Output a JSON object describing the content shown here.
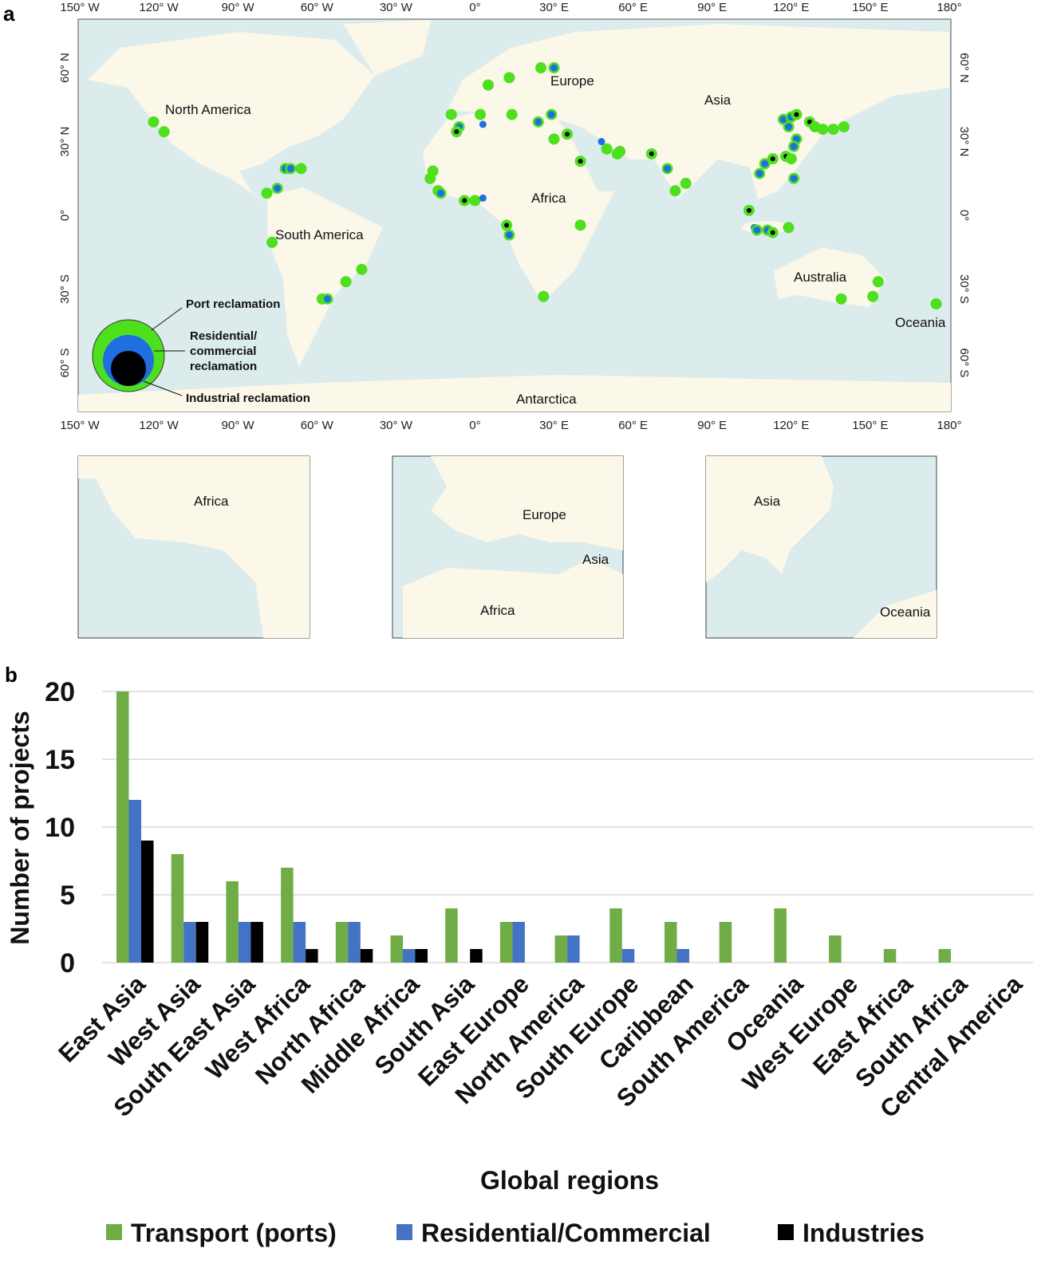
{
  "panel_a_label": "a",
  "panel_b_label": "b",
  "map": {
    "lon_ticks": [
      "150° W",
      "120° W",
      "90° W",
      "60° W",
      "30° W",
      "0°",
      "30° E",
      "60° E",
      "90° E",
      "120° E",
      "150° E",
      "180°"
    ],
    "lat_ticks": [
      "60° N",
      "30° N",
      "0°",
      "30° S",
      "60° S"
    ],
    "labels": [
      "North America",
      "South America",
      "Europe",
      "Asia",
      "Africa",
      "Australia",
      "Oceania",
      "Antarctica"
    ],
    "legend": {
      "port": "Port reclamation",
      "residential_1": "Residential/",
      "residential_2": "commercial",
      "residential_3": "reclamation",
      "industrial": "Industrial reclamation"
    },
    "colors": {
      "ocean": "#dcebec",
      "land": "#fbf7e9",
      "port": "#4ee01e",
      "residential": "#1f6fe0",
      "industrial": "#000000"
    },
    "points": [
      {
        "lon": -122,
        "lat": 38,
        "t": "g"
      },
      {
        "lon": -118,
        "lat": 34,
        "t": "g"
      },
      {
        "lon": -72,
        "lat": 19,
        "t": "gb"
      },
      {
        "lon": -70,
        "lat": 19,
        "t": "gb"
      },
      {
        "lon": -66,
        "lat": 19,
        "t": "g"
      },
      {
        "lon": -79,
        "lat": 9,
        "t": "g"
      },
      {
        "lon": -75,
        "lat": 11,
        "t": "gb"
      },
      {
        "lon": -77,
        "lat": -11,
        "t": "g"
      },
      {
        "lon": -58,
        "lat": -34,
        "t": "g"
      },
      {
        "lon": -56,
        "lat": -34,
        "t": "gb"
      },
      {
        "lon": -49,
        "lat": -27,
        "t": "g"
      },
      {
        "lon": -43,
        "lat": -22,
        "t": "g"
      },
      {
        "lon": -16,
        "lat": 18,
        "t": "g"
      },
      {
        "lon": -17,
        "lat": 15,
        "t": "g"
      },
      {
        "lon": -14,
        "lat": 10,
        "t": "g"
      },
      {
        "lon": -13,
        "lat": 9,
        "t": "gb"
      },
      {
        "lon": -4,
        "lat": 6,
        "t": "gk"
      },
      {
        "lon": 0,
        "lat": 6,
        "t": "g"
      },
      {
        "lon": 3,
        "lat": 7,
        "t": "b"
      },
      {
        "lon": 12,
        "lat": -4,
        "t": "gk"
      },
      {
        "lon": 13,
        "lat": -8,
        "t": "gb"
      },
      {
        "lon": 26,
        "lat": -33,
        "t": "g"
      },
      {
        "lon": 40,
        "lat": -4,
        "t": "g"
      },
      {
        "lon": 5,
        "lat": 53,
        "t": "g"
      },
      {
        "lon": 13,
        "lat": 56,
        "t": "g"
      },
      {
        "lon": 25,
        "lat": 60,
        "t": "g"
      },
      {
        "lon": 30,
        "lat": 60,
        "t": "gb"
      },
      {
        "lon": -9,
        "lat": 41,
        "t": "g"
      },
      {
        "lon": 2,
        "lat": 41,
        "t": "g"
      },
      {
        "lon": 14,
        "lat": 41,
        "t": "g"
      },
      {
        "lon": -6,
        "lat": 36,
        "t": "gb"
      },
      {
        "lon": -7,
        "lat": 34,
        "t": "gk"
      },
      {
        "lon": 3,
        "lat": 37,
        "t": "b"
      },
      {
        "lon": 24,
        "lat": 38,
        "t": "gb"
      },
      {
        "lon": 29,
        "lat": 41,
        "t": "gb"
      },
      {
        "lon": 35,
        "lat": 33,
        "t": "gk"
      },
      {
        "lon": 30,
        "lat": 31,
        "t": "g"
      },
      {
        "lon": 40,
        "lat": 22,
        "t": "gk"
      },
      {
        "lon": 48,
        "lat": 30,
        "t": "b"
      },
      {
        "lon": 50,
        "lat": 27,
        "t": "g"
      },
      {
        "lon": 54,
        "lat": 25,
        "t": "g"
      },
      {
        "lon": 55,
        "lat": 26,
        "t": "g"
      },
      {
        "lon": 67,
        "lat": 25,
        "t": "gk"
      },
      {
        "lon": 73,
        "lat": 19,
        "t": "gb"
      },
      {
        "lon": 76,
        "lat": 10,
        "t": "g"
      },
      {
        "lon": 80,
        "lat": 13,
        "t": "g"
      },
      {
        "lon": 117,
        "lat": 39,
        "t": "gb"
      },
      {
        "lon": 120,
        "lat": 40,
        "t": "gb"
      },
      {
        "lon": 122,
        "lat": 41,
        "t": "gk"
      },
      {
        "lon": 119,
        "lat": 36,
        "t": "gb"
      },
      {
        "lon": 127,
        "lat": 38,
        "t": "gk"
      },
      {
        "lon": 129,
        "lat": 36,
        "t": "g"
      },
      {
        "lon": 132,
        "lat": 35,
        "t": "g"
      },
      {
        "lon": 136,
        "lat": 35,
        "t": "g"
      },
      {
        "lon": 140,
        "lat": 36,
        "t": "g"
      },
      {
        "lon": 122,
        "lat": 31,
        "t": "gb"
      },
      {
        "lon": 121,
        "lat": 28,
        "t": "gb"
      },
      {
        "lon": 118,
        "lat": 24,
        "t": "gk"
      },
      {
        "lon": 120,
        "lat": 23,
        "t": "g"
      },
      {
        "lon": 113,
        "lat": 23,
        "t": "gk"
      },
      {
        "lon": 110,
        "lat": 21,
        "t": "gb"
      },
      {
        "lon": 108,
        "lat": 17,
        "t": "gb"
      },
      {
        "lon": 121,
        "lat": 15,
        "t": "gb"
      },
      {
        "lon": 104,
        "lat": 2,
        "t": "gk"
      },
      {
        "lon": 106,
        "lat": -5,
        "t": "b"
      },
      {
        "lon": 107,
        "lat": -6,
        "t": "gb"
      },
      {
        "lon": 111,
        "lat": -6,
        "t": "gb"
      },
      {
        "lon": 113,
        "lat": -7,
        "t": "gk"
      },
      {
        "lon": 119,
        "lat": -5,
        "t": "g"
      },
      {
        "lon": 153,
        "lat": -27,
        "t": "g"
      },
      {
        "lon": 139,
        "lat": -34,
        "t": "g"
      },
      {
        "lon": 151,
        "lat": -33,
        "t": "g"
      },
      {
        "lon": 175,
        "lat": -36,
        "t": "g"
      }
    ],
    "insets": [
      {
        "labels": [
          "Africa"
        ]
      },
      {
        "labels": [
          "Europe",
          "Asia",
          "Africa"
        ]
      },
      {
        "labels": [
          "Asia",
          "Oceania"
        ]
      }
    ]
  },
  "chart_data": {
    "type": "bar",
    "title": "",
    "xlabel": "Global regions",
    "ylabel": "Number of projects",
    "ylim": [
      0,
      20
    ],
    "yticks": [
      0,
      5,
      10,
      15,
      20
    ],
    "grid": true,
    "legend_position": "bottom",
    "categories": [
      "East Asia",
      "West Asia",
      "South East Asia",
      "West Africa",
      "North Africa",
      "Middle Africa",
      "South Asia",
      "East Europe",
      "North America",
      "South Europe",
      "Caribbean",
      "South America",
      "Oceania",
      "West Europe",
      "East Africa",
      "South Africa",
      "Central America"
    ],
    "series": [
      {
        "name": "Transport (ports)",
        "color": "#70ad47",
        "values": [
          20,
          8,
          6,
          7,
          3,
          2,
          4,
          3,
          2,
          4,
          3,
          3,
          4,
          2,
          1,
          1,
          0
        ]
      },
      {
        "name": "Residential/Commercial",
        "color": "#4472c4",
        "values": [
          12,
          3,
          3,
          3,
          3,
          1,
          0,
          3,
          2,
          1,
          1,
          0,
          0,
          0,
          0,
          0,
          0
        ]
      },
      {
        "name": "Industries",
        "color": "#000000",
        "values": [
          9,
          3,
          3,
          1,
          1,
          1,
          1,
          0,
          0,
          0,
          0,
          0,
          0,
          0,
          0,
          0,
          0
        ]
      }
    ]
  }
}
